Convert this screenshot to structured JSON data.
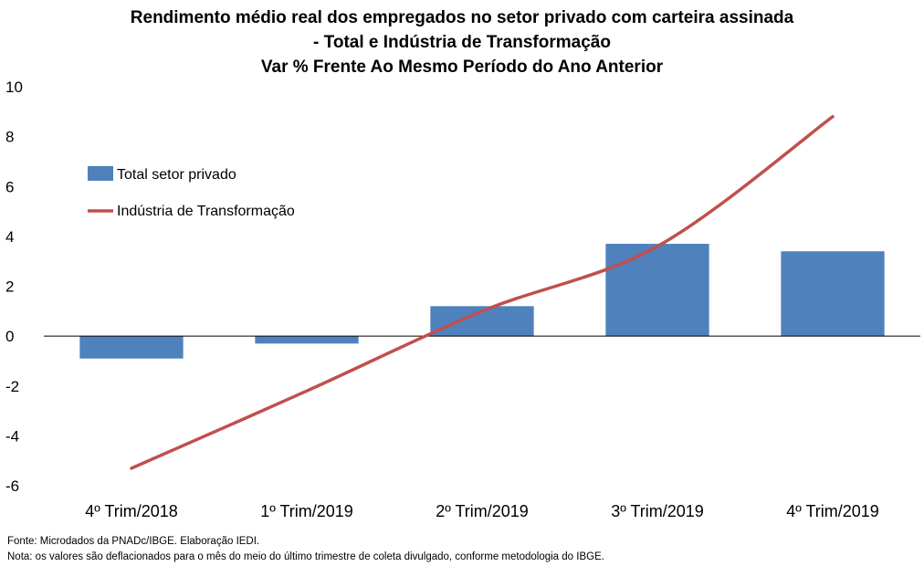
{
  "chart_data": {
    "type": "bar",
    "title": [
      "Rendimento médio real dos empregados no setor privado com carteira assinada",
      "- Total e Indústria de Transformação",
      "Var % Frente Ao Mesmo Período do Ano Anterior"
    ],
    "categories": [
      "4º Trim/2018",
      "1º Trim/2019",
      "2º Trim/2019",
      "3º Trim/2019",
      "4º Trim/2019"
    ],
    "series": [
      {
        "name": "Total setor privado",
        "type": "bar",
        "color": "#4f81bd",
        "values": [
          -0.9,
          -0.3,
          1.2,
          3.7,
          3.4
        ]
      },
      {
        "name": "Indústria de Transformação",
        "type": "line",
        "color": "#c0504d",
        "values": [
          -5.3,
          -2.2,
          1.0,
          3.6,
          8.8
        ]
      }
    ],
    "ylim": [
      -6,
      10
    ],
    "yticks": [
      -6,
      -4,
      -2,
      0,
      2,
      4,
      6,
      8,
      10
    ],
    "xlabel": "",
    "ylabel": "",
    "grid": false,
    "legend_position": "top-left"
  },
  "footer": {
    "source": "Fonte: Microdados da PNADc/IBGE. Elaboração IEDI.",
    "note": "Nota: os valores são deflacionados para o mês do meio do último trimestre de coleta divulgado, conforme metodologia do IBGE."
  }
}
